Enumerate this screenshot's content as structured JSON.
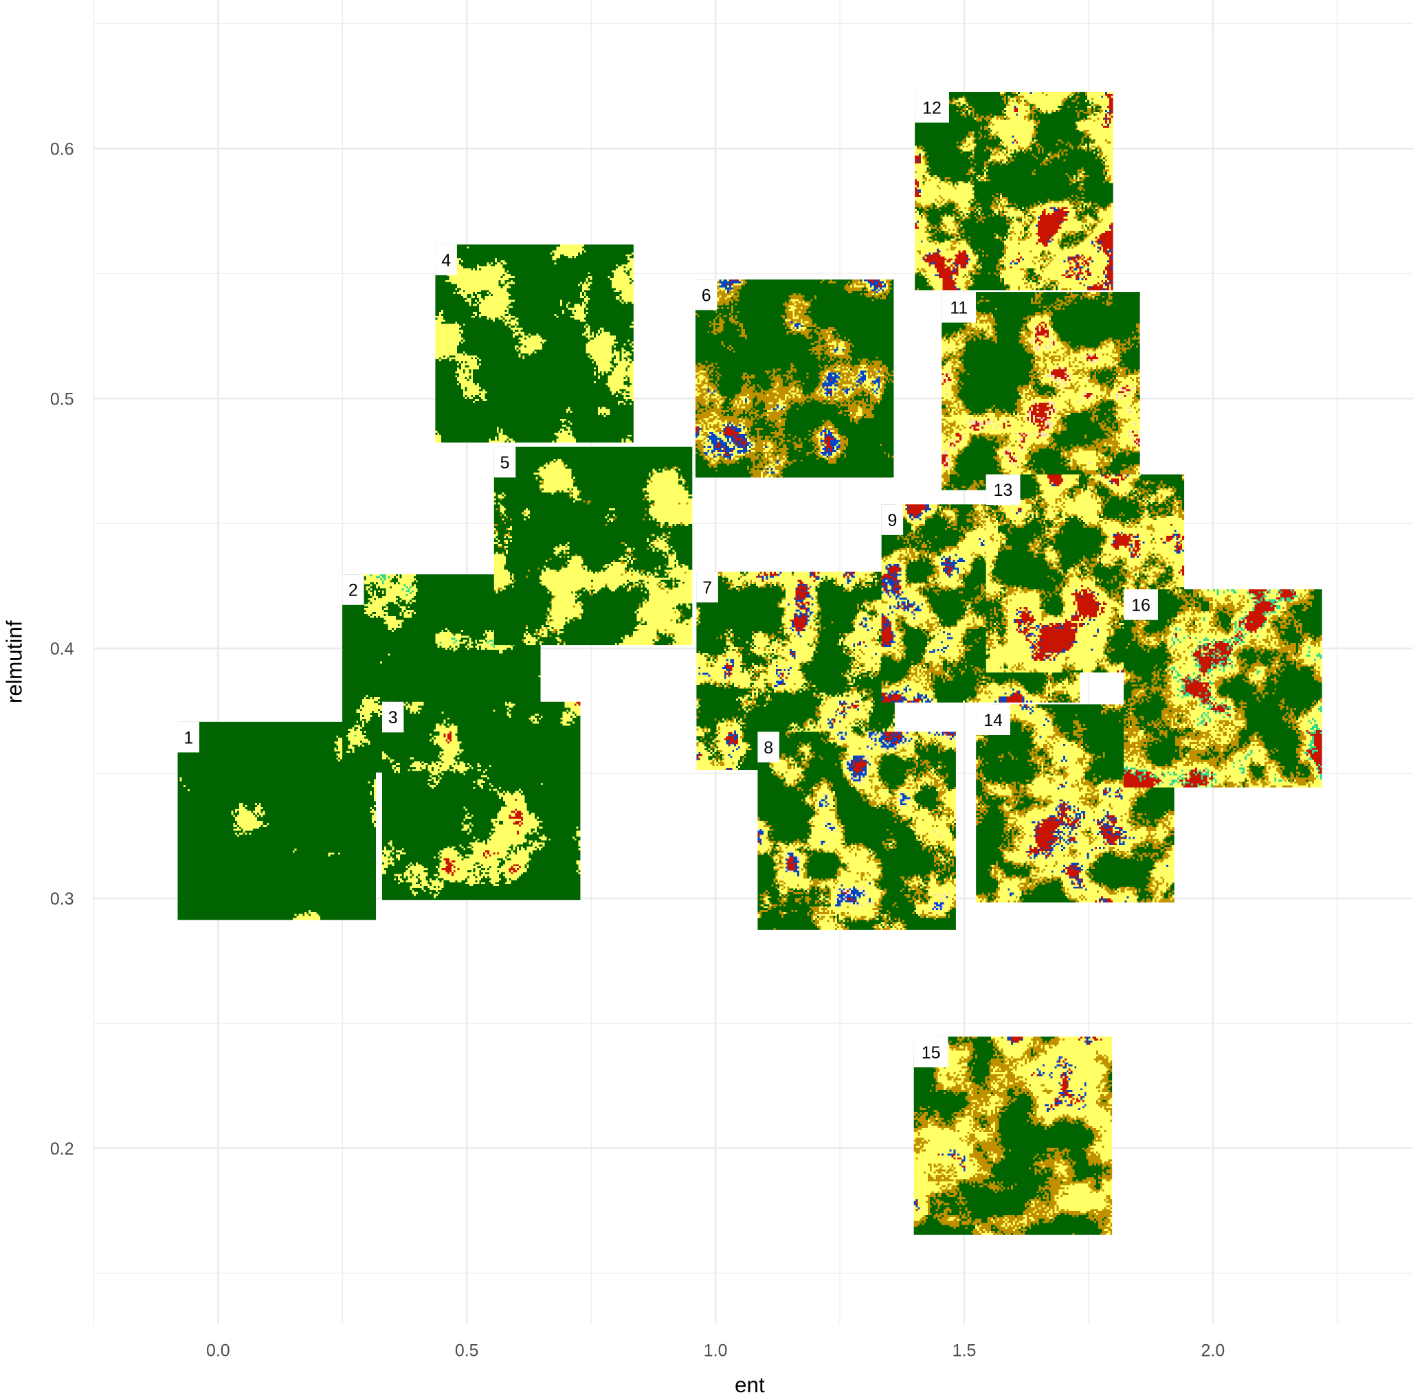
{
  "chart_data": {
    "type": "scatter",
    "marker": "landscape-image-tile",
    "xlabel": "ent",
    "ylabel": "relmutinf",
    "xlim": [
      -0.25,
      2.4
    ],
    "ylim": [
      0.145,
      0.645
    ],
    "x_ticks": [
      "0.0",
      "0.5",
      "1.0",
      "1.5",
      "2.0"
    ],
    "x_tick_values": [
      0,
      0.5,
      1.0,
      1.5,
      2.0
    ],
    "y_ticks": [
      "0.2",
      "0.3",
      "0.4",
      "0.5",
      "0.6"
    ],
    "y_tick_values": [
      0.2,
      0.3,
      0.4,
      0.5,
      0.6
    ],
    "grid": true,
    "class_colors": {
      "forest": "#006400",
      "field": "#ffff66",
      "shrub": "#c09000",
      "urban": "#c81400",
      "water": "#0046c8",
      "grassland": "#30d890",
      "bare": "#f5d5d0"
    },
    "points": [
      {
        "label": "1",
        "ent": 0.118,
        "relmutinf": 0.331,
        "composition": {
          "forest": 0.97,
          "field": 0.03
        }
      },
      {
        "label": "2",
        "ent": 0.449,
        "relmutinf": 0.39,
        "composition": {
          "forest": 0.85,
          "field": 0.14,
          "grassland": 0.01
        }
      },
      {
        "label": "3",
        "ent": 0.529,
        "relmutinf": 0.339,
        "composition": {
          "forest": 0.8,
          "field": 0.19,
          "urban": 0.01
        }
      },
      {
        "label": "4",
        "ent": 0.636,
        "relmutinf": 0.522,
        "composition": {
          "forest": 0.78,
          "field": 0.22
        }
      },
      {
        "label": "5",
        "ent": 0.754,
        "relmutinf": 0.441,
        "composition": {
          "forest": 0.7,
          "field": 0.28,
          "shrub": 0.02
        }
      },
      {
        "label": "6",
        "ent": 1.159,
        "relmutinf": 0.508,
        "composition": {
          "forest": 0.62,
          "shrub": 0.25,
          "field": 0.08,
          "water": 0.04,
          "urban": 0.01
        }
      },
      {
        "label": "7",
        "ent": 1.161,
        "relmutinf": 0.391,
        "composition": {
          "forest": 0.55,
          "field": 0.33,
          "shrub": 0.08,
          "urban": 0.02,
          "water": 0.02
        }
      },
      {
        "label": "8",
        "ent": 1.284,
        "relmutinf": 0.327,
        "composition": {
          "forest": 0.5,
          "field": 0.3,
          "shrub": 0.15,
          "water": 0.03,
          "bare": 0.01,
          "urban": 0.01
        }
      },
      {
        "label": "9",
        "ent": 1.533,
        "relmutinf": 0.418,
        "composition": {
          "forest": 0.45,
          "field": 0.3,
          "shrub": 0.18,
          "water": 0.04,
          "urban": 0.03
        }
      },
      {
        "label": "11",
        "ent": 1.654,
        "relmutinf": 0.503,
        "composition": {
          "forest": 0.5,
          "field": 0.25,
          "shrub": 0.2,
          "urban": 0.03,
          "bare": 0.02
        }
      },
      {
        "label": "12",
        "ent": 1.6,
        "relmutinf": 0.583,
        "composition": {
          "forest": 0.45,
          "field": 0.35,
          "shrub": 0.12,
          "urban": 0.07,
          "water": 0.01
        }
      },
      {
        "label": "13",
        "ent": 1.743,
        "relmutinf": 0.43,
        "composition": {
          "forest": 0.35,
          "field": 0.4,
          "shrub": 0.17,
          "urban": 0.07,
          "water": 0.01
        }
      },
      {
        "label": "14",
        "ent": 1.723,
        "relmutinf": 0.338,
        "composition": {
          "forest": 0.4,
          "field": 0.35,
          "shrub": 0.18,
          "urban": 0.04,
          "water": 0.03
        }
      },
      {
        "label": "15",
        "ent": 1.598,
        "relmutinf": 0.205,
        "composition": {
          "forest": 0.35,
          "field": 0.35,
          "shrub": 0.28,
          "urban": 0.01,
          "water": 0.01
        }
      },
      {
        "label": "16",
        "ent": 2.02,
        "relmutinf": 0.384,
        "composition": {
          "forest": 0.35,
          "field": 0.27,
          "shrub": 0.25,
          "urban": 0.08,
          "grassland": 0.05
        }
      }
    ]
  }
}
